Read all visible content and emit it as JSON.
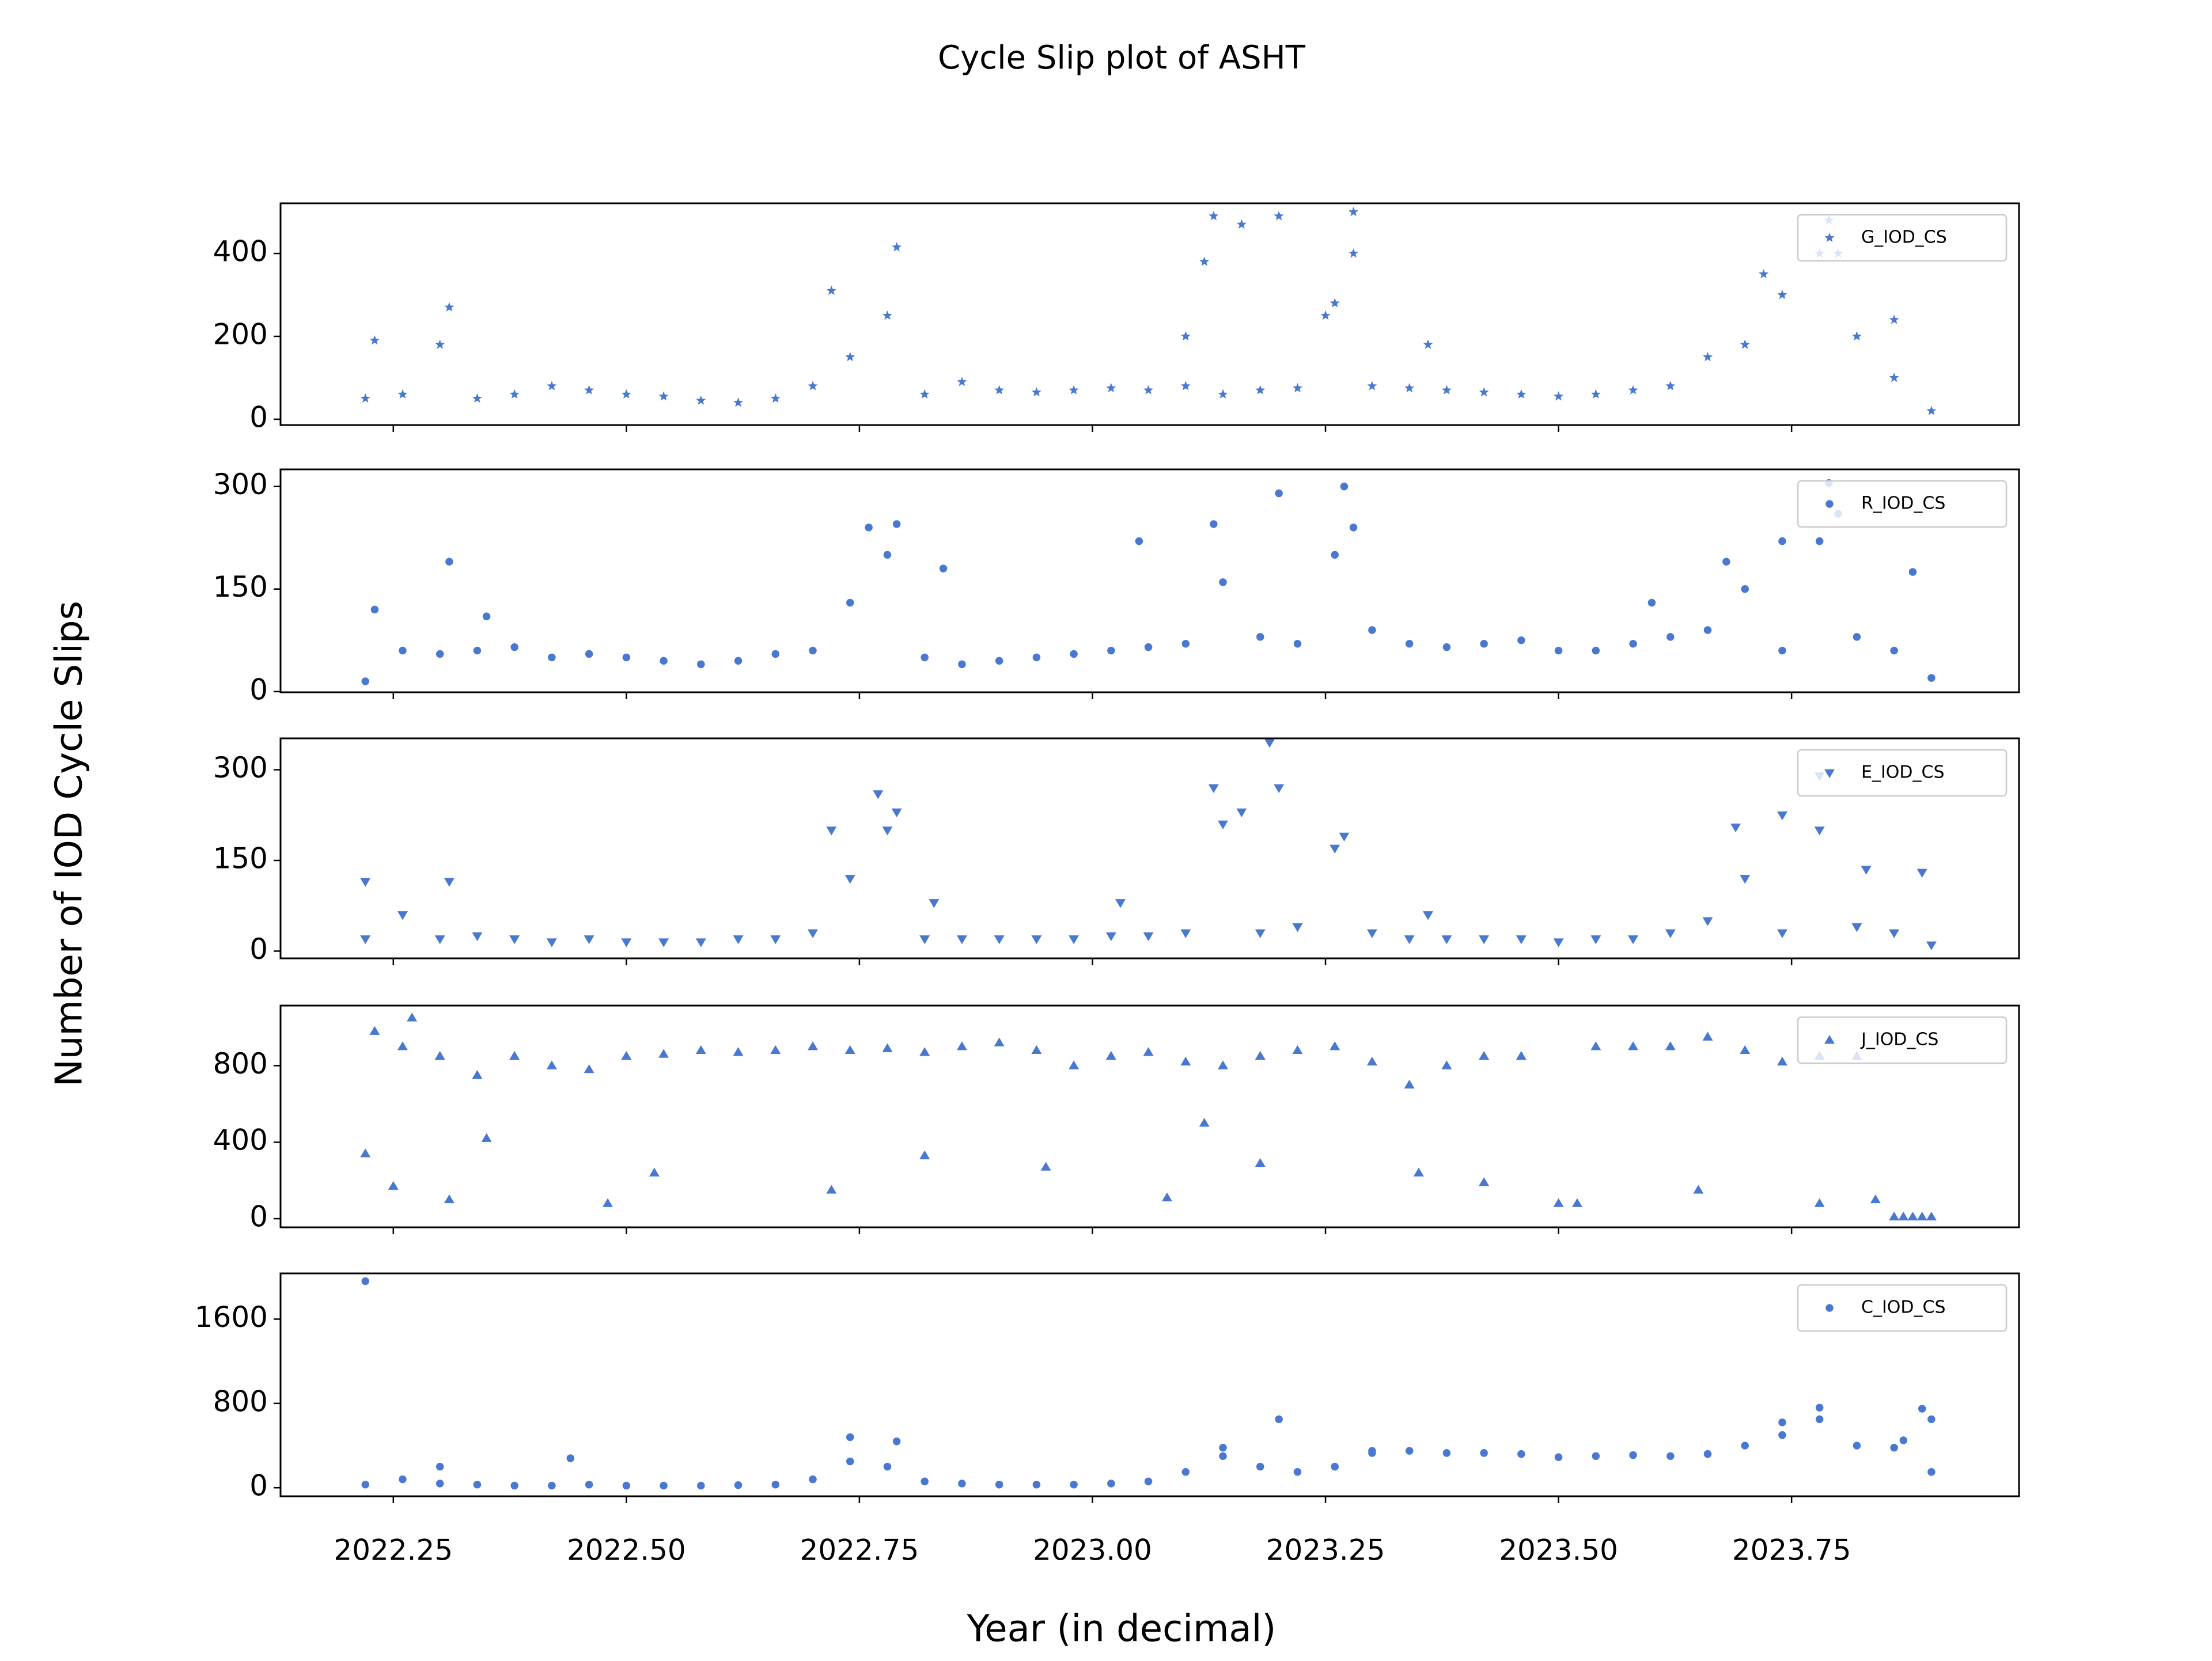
{
  "title": "Cycle Slip plot of ASHT",
  "x_label": "Year (in decimal)",
  "y_label": "Number of IOD Cycle Slips",
  "chart_data": [
    {
      "type": "scatter",
      "xlim": [
        2022.129,
        2023.994
      ],
      "ylim": [
        -14,
        521
      ],
      "yticks": [
        0,
        200,
        400
      ],
      "legend": "upper right",
      "series": [
        {
          "name": "G_IOD_CS",
          "color": "#4878d0",
          "marker": "star",
          "x": [
            2022.22,
            2022.26,
            2022.3,
            2022.34,
            2022.38,
            2022.42,
            2022.46,
            2022.5,
            2022.54,
            2022.58,
            2022.62,
            2022.66,
            2022.7,
            2022.74,
            2022.78,
            2022.82,
            2022.86,
            2022.9,
            2022.94,
            2022.98,
            2023.02,
            2023.06,
            2023.1,
            2023.14,
            2023.18,
            2023.22,
            2023.26,
            2023.3,
            2023.34,
            2023.38,
            2023.42,
            2023.46,
            2023.5,
            2023.54,
            2023.58,
            2023.62,
            2023.66,
            2023.7,
            2023.74,
            2023.78,
            2023.82,
            2023.86,
            2023.9,
            2022.23,
            2022.31,
            2022.72,
            2022.79,
            2023.1,
            2023.12,
            2023.13,
            2023.16,
            2023.2,
            2023.25,
            2023.28,
            2023.28,
            2023.36,
            2023.72,
            2023.79,
            2023.8,
            2023.86
          ],
          "values": [
            50,
            60,
            180,
            50,
            60,
            80,
            70,
            60,
            55,
            45,
            40,
            50,
            80,
            150,
            250,
            60,
            90,
            70,
            65,
            70,
            75,
            70,
            80,
            60,
            70,
            75,
            280,
            80,
            75,
            70,
            65,
            60,
            55,
            60,
            70,
            80,
            150,
            180,
            300,
            400,
            200,
            100,
            20,
            190,
            270,
            310,
            415,
            200,
            380,
            490,
            470,
            490,
            250,
            500,
            400,
            180,
            350,
            480,
            400,
            240
          ]
        }
      ]
    },
    {
      "type": "scatter",
      "xlim": [
        2022.129,
        2023.994
      ],
      "ylim": [
        -1,
        325
      ],
      "yticks": [
        0,
        150,
        300
      ],
      "legend": "upper right",
      "series": [
        {
          "name": "R_IOD_CS",
          "color": "#4878d0",
          "marker": "circle",
          "x": [
            2022.22,
            2022.26,
            2022.3,
            2022.34,
            2022.38,
            2022.42,
            2022.46,
            2022.5,
            2022.54,
            2022.58,
            2022.62,
            2022.66,
            2022.7,
            2022.74,
            2022.78,
            2022.82,
            2022.86,
            2022.9,
            2022.94,
            2022.98,
            2023.02,
            2023.06,
            2023.1,
            2023.14,
            2023.18,
            2023.22,
            2023.26,
            2023.3,
            2023.34,
            2023.38,
            2023.42,
            2023.46,
            2023.5,
            2023.54,
            2023.58,
            2023.62,
            2023.66,
            2023.7,
            2023.74,
            2023.78,
            2023.82,
            2023.86,
            2023.9,
            2022.23,
            2022.31,
            2022.35,
            2022.76,
            2022.79,
            2022.84,
            2023.05,
            2023.13,
            2023.2,
            2023.27,
            2023.28,
            2023.6,
            2023.68,
            2023.74,
            2023.79,
            2023.8,
            2023.88
          ],
          "values": [
            15,
            60,
            55,
            60,
            65,
            50,
            55,
            50,
            45,
            40,
            45,
            55,
            60,
            130,
            200,
            50,
            40,
            45,
            50,
            55,
            60,
            65,
            70,
            160,
            80,
            70,
            200,
            90,
            70,
            65,
            70,
            75,
            60,
            60,
            70,
            80,
            90,
            150,
            60,
            220,
            80,
            60,
            20,
            120,
            190,
            110,
            240,
            245,
            180,
            220,
            245,
            290,
            300,
            240,
            130,
            190,
            220,
            305,
            260,
            175
          ]
        }
      ]
    },
    {
      "type": "scatter",
      "xlim": [
        2022.129,
        2023.994
      ],
      "ylim": [
        -12,
        352
      ],
      "yticks": [
        0,
        150,
        300
      ],
      "legend": "upper right",
      "series": [
        {
          "name": "E_IOD_CS",
          "color": "#4878d0",
          "marker": "triangle_down",
          "x": [
            2022.22,
            2022.26,
            2022.3,
            2022.34,
            2022.38,
            2022.42,
            2022.46,
            2022.5,
            2022.54,
            2022.58,
            2022.62,
            2022.66,
            2022.7,
            2022.74,
            2022.78,
            2022.82,
            2022.86,
            2022.9,
            2022.94,
            2022.98,
            2023.02,
            2023.06,
            2023.1,
            2023.14,
            2023.18,
            2023.22,
            2023.26,
            2023.3,
            2023.34,
            2023.38,
            2023.42,
            2023.46,
            2023.5,
            2023.54,
            2023.58,
            2023.62,
            2023.66,
            2023.7,
            2023.74,
            2023.78,
            2023.82,
            2023.86,
            2023.9,
            2022.22,
            2022.31,
            2022.72,
            2022.77,
            2022.79,
            2022.83,
            2023.03,
            2023.13,
            2023.16,
            2023.19,
            2023.2,
            2023.27,
            2023.36,
            2023.69,
            2023.74,
            2023.78,
            2023.83,
            2023.89
          ],
          "values": [
            20,
            60,
            20,
            25,
            20,
            15,
            20,
            15,
            15,
            15,
            20,
            20,
            30,
            120,
            200,
            20,
            20,
            20,
            20,
            20,
            25,
            25,
            30,
            210,
            30,
            40,
            170,
            30,
            20,
            20,
            20,
            20,
            15,
            20,
            20,
            30,
            50,
            120,
            30,
            200,
            40,
            30,
            10,
            115,
            115,
            200,
            260,
            230,
            80,
            80,
            270,
            230,
            345,
            270,
            190,
            60,
            205,
            225,
            290,
            135,
            130
          ]
        }
      ]
    },
    {
      "type": "scatter",
      "xlim": [
        2022.129,
        2023.994
      ],
      "ylim": [
        -45,
        1114
      ],
      "yticks": [
        0,
        400,
        800
      ],
      "legend": "upper right",
      "series": [
        {
          "name": "J_IOD_CS",
          "color": "#4878d0",
          "marker": "triangle_up",
          "x": [
            2022.22,
            2022.26,
            2022.3,
            2022.34,
            2022.38,
            2022.42,
            2022.46,
            2022.5,
            2022.54,
            2022.58,
            2022.62,
            2022.66,
            2022.7,
            2022.74,
            2022.78,
            2022.82,
            2022.86,
            2022.9,
            2022.94,
            2022.98,
            2023.02,
            2023.06,
            2023.1,
            2023.14,
            2023.18,
            2023.22,
            2023.26,
            2023.3,
            2023.34,
            2023.38,
            2023.42,
            2023.46,
            2023.5,
            2023.54,
            2023.58,
            2023.62,
            2023.66,
            2023.7,
            2023.74,
            2023.78,
            2023.82,
            2023.86,
            2023.9,
            2022.23,
            2022.27,
            2022.25,
            2022.31,
            2022.35,
            2022.48,
            2022.53,
            2022.72,
            2022.82,
            2022.95,
            2023.08,
            2023.12,
            2023.18,
            2023.35,
            2023.42,
            2023.52,
            2023.65,
            2023.78,
            2023.84,
            2023.87,
            2023.88,
            2023.89
          ],
          "values": [
            340,
            900,
            850,
            750,
            850,
            800,
            780,
            850,
            860,
            880,
            870,
            880,
            900,
            880,
            890,
            870,
            900,
            920,
            880,
            800,
            850,
            870,
            820,
            800,
            850,
            880,
            900,
            820,
            700,
            800,
            850,
            850,
            80,
            900,
            900,
            900,
            950,
            880,
            820,
            850,
            850,
            10,
            10,
            980,
            1050,
            170,
            100,
            420,
            80,
            240,
            150,
            330,
            270,
            110,
            500,
            290,
            240,
            190,
            80,
            150,
            80,
            100,
            10,
            10,
            10
          ]
        }
      ]
    },
    {
      "type": "scatter",
      "xlim": [
        2022.129,
        2023.994
      ],
      "ylim": [
        -81,
        2034
      ],
      "yticks": [
        0,
        800,
        1600
      ],
      "legend": "upper right",
      "xticks": [
        2022.25,
        {
          "value": 2022.5,
          "label": "2022.50"
        },
        2022.75,
        {
          "value": 2023.0,
          "label": "2023.00"
        },
        2023.25,
        {
          "value": 2023.5,
          "label": "2023.50"
        },
        2023.75
      ],
      "series": [
        {
          "name": "C_IOD_CS",
          "color": "#4878d0",
          "marker": "circle",
          "x": [
            2022.22,
            2022.26,
            2022.3,
            2022.34,
            2022.38,
            2022.42,
            2022.46,
            2022.5,
            2022.54,
            2022.58,
            2022.62,
            2022.66,
            2022.7,
            2022.74,
            2022.78,
            2022.82,
            2022.86,
            2022.9,
            2022.94,
            2022.98,
            2023.02,
            2023.06,
            2023.1,
            2023.14,
            2023.18,
            2023.22,
            2023.26,
            2023.3,
            2023.34,
            2023.38,
            2023.42,
            2023.46,
            2023.5,
            2023.54,
            2023.58,
            2023.62,
            2023.66,
            2023.7,
            2023.74,
            2023.78,
            2023.82,
            2023.86,
            2023.9,
            2022.22,
            2022.3,
            2022.44,
            2022.74,
            2022.79,
            2023.14,
            2023.2,
            2023.3,
            2023.74,
            2023.78,
            2023.87,
            2023.89,
            2023.9
          ],
          "values": [
            30,
            80,
            40,
            30,
            20,
            20,
            30,
            20,
            20,
            20,
            25,
            30,
            80,
            250,
            200,
            60,
            40,
            30,
            30,
            30,
            40,
            60,
            150,
            300,
            200,
            150,
            200,
            330,
            350,
            330,
            330,
            320,
            290,
            300,
            310,
            300,
            320,
            400,
            500,
            650,
            400,
            380,
            150,
            1960,
            200,
            280,
            480,
            440,
            380,
            650,
            350,
            620,
            760,
            450,
            750,
            650
          ]
        }
      ]
    }
  ]
}
